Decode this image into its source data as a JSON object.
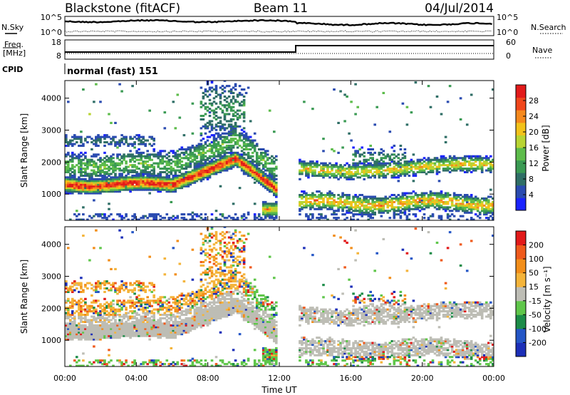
{
  "header": {
    "station": "Blackstone (fitACF)",
    "beam": "Beam 11",
    "date": "04/Jul/2014"
  },
  "top_panels": {
    "nsky_label": "N.Sky",
    "freq_label_1": "Freq.",
    "freq_label_2": "[MHz]",
    "cpid_label": "CPID",
    "nsearch_label": "N.Search",
    "nave_label": "Nave",
    "ticks": {
      "noise_top": "10^5",
      "noise_bottom": "10^0",
      "freq_top": "18",
      "freq_bottom": "8",
      "nave_top": "60",
      "nave_bottom": "0"
    },
    "cpid_text": "normal (fast) 151"
  },
  "chart_data": [
    {
      "type": "heatmap",
      "title": "",
      "xlabel": "Time UT",
      "ylabel": "Slant Range [km]",
      "colorbar_label": "Power [dB]",
      "x_ticks": [
        "00:00",
        "04:00",
        "08:00",
        "12:00",
        "16:00",
        "20:00",
        "00:00"
      ],
      "x_range_hours": [
        0,
        24
      ],
      "y_ticks": [
        "1000",
        "2000",
        "3000",
        "4000"
      ],
      "y_range_km": [
        180,
        4550
      ],
      "colorbar_ticks": [
        "4",
        "8",
        "12",
        "16",
        "20",
        "24",
        "28"
      ],
      "colorbar_range": [
        0,
        32
      ],
      "colors": [
        "#1a23ff",
        "#2a4bb0",
        "#2f6e66",
        "#3a9a53",
        "#5dbc4b",
        "#b8d433",
        "#f2c21a",
        "#f5891d",
        "#f0461b",
        "#e21a1a"
      ],
      "data_gap_hours": [
        11.8,
        13.0
      ],
      "features": [
        {
          "name": "main echo band (before gap)",
          "hours": [
            0,
            13
          ],
          "range_km": [
            950,
            2400
          ]
        },
        {
          "name": "upper band (after gap)",
          "hours": [
            13,
            24
          ],
          "range_km": [
            1500,
            2100
          ]
        },
        {
          "name": "lower band (after gap)",
          "hours": [
            13,
            24
          ],
          "range_km": [
            400,
            1100
          ]
        }
      ]
    },
    {
      "type": "heatmap",
      "title": "",
      "xlabel": "Time UT",
      "ylabel": "Slant Range [km]",
      "colorbar_label": "Velocity [m s⁻¹]",
      "x_ticks": [
        "00:00",
        "04:00",
        "08:00",
        "12:00",
        "16:00",
        "20:00",
        "00:00"
      ],
      "x_range_hours": [
        0,
        24
      ],
      "y_ticks": [
        "1000",
        "2000",
        "3000",
        "4000"
      ],
      "y_range_km": [
        180,
        4550
      ],
      "colorbar_ticks": [
        "200",
        "100",
        "50",
        "15",
        "-15",
        "-50",
        "-100",
        "-200"
      ],
      "colorbar_range": [
        -250,
        250
      ],
      "colors": [
        "#1c2fb8",
        "#2456c6",
        "#1c8c48",
        "#5fc64a",
        "#bdbdb5",
        "#f4b43a",
        "#f28e1a",
        "#ef5a1c",
        "#e21a1a"
      ],
      "features": [
        {
          "name": "ground scatter (grey)",
          "hours": [
            0,
            24
          ],
          "range_km": [
            600,
            2600
          ]
        },
        {
          "name": "negative velocity patches (orange)",
          "hours": [
            0,
            10
          ],
          "range_km": [
            1500,
            3800
          ]
        }
      ]
    }
  ]
}
